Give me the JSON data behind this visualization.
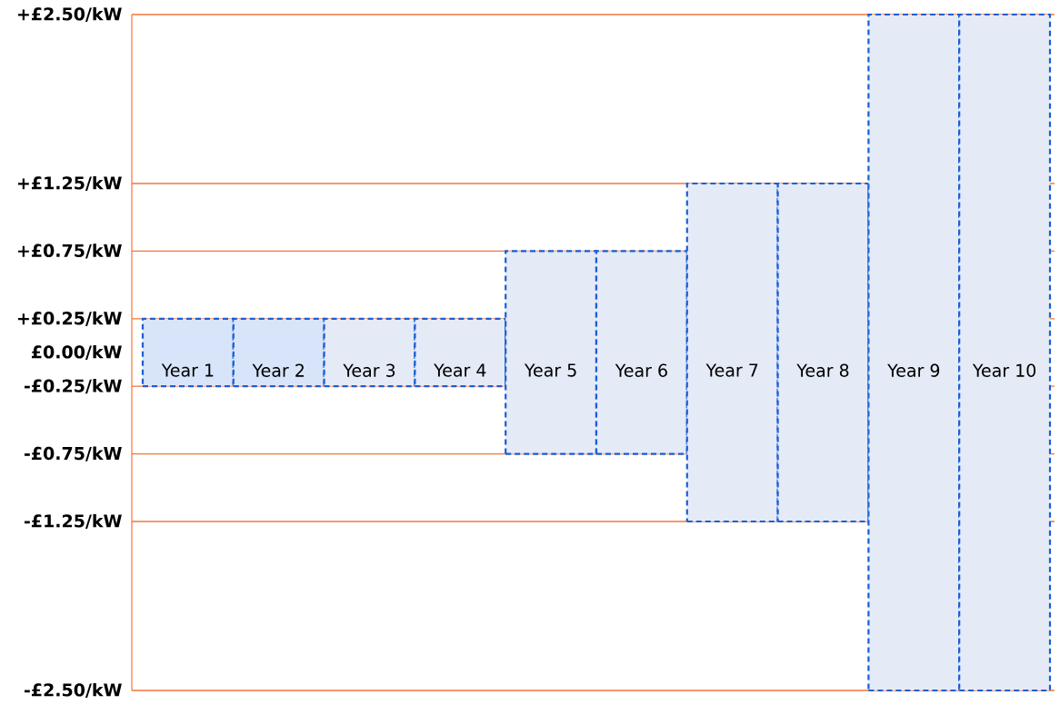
{
  "chart_data": {
    "type": "bar",
    "categories": [
      "Year 1",
      "Year 2",
      "Year 3",
      "Year 4",
      "Year 5",
      "Year 6",
      "Year 7",
      "Year 8",
      "Year 9",
      "Year 10"
    ],
    "base": [
      -0.25,
      -0.25,
      -0.25,
      -0.25,
      -0.75,
      -0.75,
      -1.25,
      -1.25,
      -2.5,
      -2.5
    ],
    "values": [
      0.5,
      0.5,
      0.5,
      0.5,
      1.5,
      1.5,
      2.5,
      2.5,
      5,
      5
    ],
    "colors": [
      "#d7e4f9",
      "#d7e4f9",
      "#e4eaf6",
      "#e4eaf6",
      "#e4eaf6",
      "#e4eaf6",
      "#e4eaf6",
      "#e4eaf6",
      "#e4eaf6",
      "#e4eaf6"
    ],
    "line_style": "dashed",
    "ylim": [
      -2.5,
      2.5
    ],
    "yticks": [
      {
        "value": 2.5,
        "label": "+£2.50/kW"
      },
      {
        "value": 1.25,
        "label": "+£1.25/kW"
      },
      {
        "value": 0.75,
        "label": "+£0.75/kW"
      },
      {
        "value": 0.25,
        "label": "+£0.25/kW"
      },
      {
        "value": 0,
        "label": "£0.00/kW"
      },
      {
        "value": -0.25,
        "label": "-£0.25/kW"
      },
      {
        "value": -0.75,
        "label": "-£0.75/kW"
      },
      {
        "value": -1.25,
        "label": "-£1.25/kW"
      },
      {
        "value": -2.5,
        "label": "-£2.50/kW"
      }
    ],
    "ref_lines": [
      {
        "axis": "y",
        "value": 1.25,
        "color": "#f4743b"
      },
      {
        "axis": "y",
        "value": 0.75,
        "color": "#f4743b"
      },
      {
        "axis": "y",
        "value": 0.25,
        "color": "#f4743b"
      },
      {
        "axis": "y",
        "value": -0.25,
        "color": "#f4743b"
      },
      {
        "axis": "y",
        "value": -0.75,
        "color": "#f4743b"
      },
      {
        "axis": "y",
        "value": -1.25,
        "color": "#f4743b"
      }
    ]
  }
}
